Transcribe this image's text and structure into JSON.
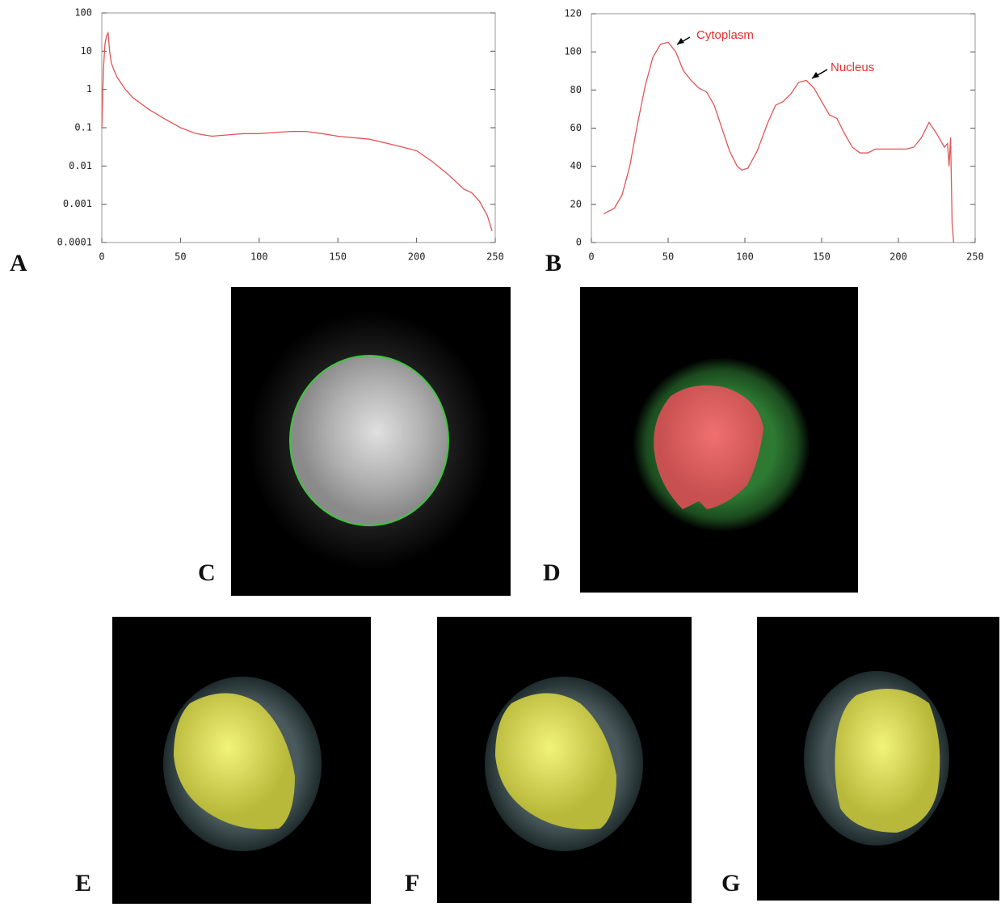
{
  "chart_data": [
    {
      "type": "line",
      "panel_label": "A",
      "log_y": true,
      "x": [
        0,
        1,
        2,
        3,
        4,
        5,
        6,
        8,
        10,
        15,
        20,
        30,
        40,
        50,
        60,
        70,
        80,
        90,
        100,
        110,
        120,
        130,
        140,
        150,
        160,
        170,
        180,
        190,
        200,
        210,
        220,
        230,
        235,
        240,
        245,
        248
      ],
      "series": [
        {
          "color": "#e05555",
          "values": [
            0.1,
            3,
            15,
            25,
            30,
            10,
            5,
            3,
            2,
            1,
            0.6,
            0.3,
            0.17,
            0.1,
            0.07,
            0.06,
            0.065,
            0.07,
            0.07,
            0.075,
            0.08,
            0.08,
            0.07,
            0.06,
            0.055,
            0.05,
            0.04,
            0.032,
            0.025,
            0.013,
            0.006,
            0.0025,
            0.002,
            0.0012,
            0.0005,
            0.0002
          ]
        }
      ],
      "xlim": [
        0,
        250
      ],
      "xticks": [
        0,
        50,
        100,
        150,
        200,
        250
      ],
      "ylim": [
        0.0001,
        100
      ],
      "yticks": [
        100,
        10,
        1,
        0.1,
        0.01,
        0.001,
        0.0001
      ]
    },
    {
      "type": "line",
      "panel_label": "B",
      "log_y": false,
      "x": [
        8,
        15,
        20,
        25,
        30,
        35,
        40,
        45,
        50,
        55,
        60,
        65,
        70,
        75,
        80,
        85,
        90,
        95,
        98,
        102,
        108,
        115,
        120,
        125,
        130,
        135,
        140,
        145,
        150,
        155,
        160,
        165,
        170,
        175,
        180,
        185,
        190,
        200,
        205,
        210,
        215,
        220,
        225,
        230,
        232,
        233,
        234,
        235,
        236
      ],
      "series": [
        {
          "color": "#e05555",
          "values": [
            15,
            18,
            25,
            40,
            62,
            82,
            97,
            104,
            105,
            100,
            90,
            85,
            81,
            79,
            72,
            60,
            48,
            40,
            38,
            39,
            48,
            63,
            72,
            74,
            78,
            84,
            85,
            81,
            74,
            67,
            65,
            57,
            50,
            47,
            47,
            49,
            49,
            49,
            49,
            50,
            55,
            63,
            57,
            50,
            52,
            40,
            55,
            10,
            0
          ]
        }
      ],
      "xlim": [
        0,
        250
      ],
      "xticks": [
        0,
        50,
        100,
        150,
        200,
        250
      ],
      "ylim": [
        0,
        120
      ],
      "yticks": [
        0,
        20,
        40,
        60,
        80,
        100,
        120
      ],
      "annotations": [
        "Cytoplasm",
        "Nucleus"
      ]
    }
  ],
  "images": [
    {
      "label": "C"
    },
    {
      "label": "D"
    },
    {
      "label": "E"
    },
    {
      "label": "F"
    },
    {
      "label": "G"
    }
  ]
}
